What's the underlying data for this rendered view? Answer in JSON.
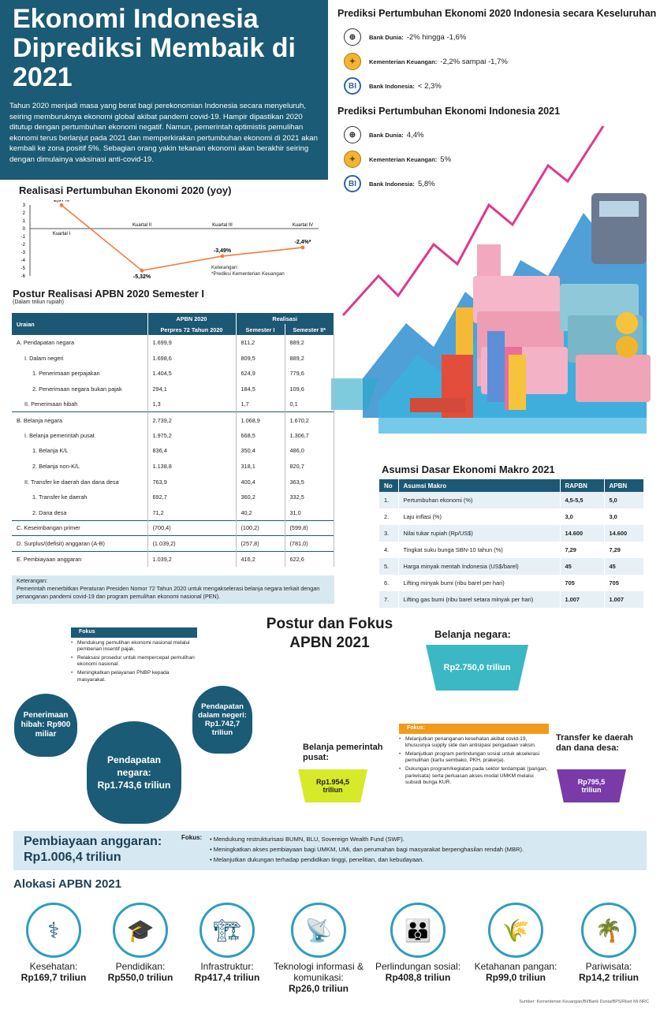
{
  "title": {
    "heading": "Ekonomi Indonesia Diprediksi Membaik di 2021",
    "intro": "Tahun 2020 menjadi masa yang berat bagi perekonomian Indonesia secara menyeluruh, seiring memburuknya ekonomi global akibat pandemi covid-19. Hampir dipastikan 2020 ditutup dengan pertumbuhan ekonomi negatif. Namun, pemerintah optimistis pemulihan ekonomi terus berlanjut pada 2021 dan memperkirakan pertumbuhan ekonomi di 2021 akan kembali ke zona positif 5%. Sebagian orang yakin tekanan ekonomi akan berakhir seiring dengan dimulainya vaksinasi anti-covid-19."
  },
  "pred2020": {
    "heading": "Prediksi Pertumbuhan Ekonomi 2020 Indonesia secara Keseluruhan",
    "rows": [
      {
        "org": "Bank Dunia:",
        "val": "-2% hingga -1,6%"
      },
      {
        "org": "Kementerian Keuangan:",
        "val": "-2,2% sampai -1,7%"
      },
      {
        "org": "Bank Indonesia:",
        "val": "< 2,3%"
      }
    ]
  },
  "pred2021": {
    "heading": "Prediksi Pertumbuhan Ekonomi Indonesia 2021",
    "rows": [
      {
        "org": "Bank Dunia:",
        "val": "4,4%"
      },
      {
        "org": "Kementerian Keuangan:",
        "val": "5%"
      },
      {
        "org": "Bank Indonesia:",
        "val": "5,8%"
      }
    ]
  },
  "growth_chart": {
    "heading": "Realisasi Pertumbuhan Ekonomi 2020 (yoy)",
    "note_title": "Keterangan:",
    "note": "*Prediksi Kementerian Keuangan"
  },
  "chart_data": {
    "type": "line",
    "title": "Realisasi Pertumbuhan Ekonomi 2020 (yoy)",
    "categories": [
      "Kuartal I",
      "Kuartal II",
      "Kuartal III",
      "Kuartal IV"
    ],
    "values": [
      2.97,
      -5.32,
      -3.49,
      -2.4
    ],
    "data_labels": [
      "2,97%",
      "-5,32%",
      "-3,49%",
      "-2,4%*"
    ],
    "yticks": [
      "3",
      "2",
      "1",
      "0",
      "-1",
      "-2",
      "-3",
      "-4",
      "-5",
      "-6"
    ],
    "ylim": [
      -6,
      3
    ],
    "color": "#f47a3c"
  },
  "apbn2020": {
    "heading": "Postur Realisasi APBN 2020 Semester I",
    "subheading": "(Dalam triliun rupiah)",
    "h_uraian": "Uraian",
    "h_apbn": "APBN 2020",
    "h_perpres": "Perpres 72 Tahun 2020",
    "h_realisasi": "Realisasi",
    "h_sem1": "Semester I",
    "h_sem2": "Semester II*",
    "rows": [
      {
        "label": "A. Pendapatan negara",
        "indent": 0,
        "a": "1.699,9",
        "b": "811,2",
        "c": "889,2",
        "sep": false
      },
      {
        "label": "I. Dalam negeri",
        "indent": 1,
        "a": "1.698,6",
        "b": "809,5",
        "c": "889,2",
        "sep": false
      },
      {
        "label": "1. Penerimaan perpajakan",
        "indent": 2,
        "a": "1.404,5",
        "b": "624,9",
        "c": "779,6",
        "sep": false
      },
      {
        "label": "2. Penerimaan negara bukan pajak",
        "indent": 2,
        "a": "294,1",
        "b": "184,5",
        "c": "109,6",
        "sep": false
      },
      {
        "label": "II. Penerimaan hibah",
        "indent": 1,
        "a": "1,3",
        "b": "1,7",
        "c": "0,1",
        "sep": false
      },
      {
        "label": "B. Belanja negara",
        "indent": 0,
        "a": "2.739,2",
        "b": "1.068,9",
        "c": "1.670,2",
        "sep": true
      },
      {
        "label": "I. Belanja pemerintah pusat",
        "indent": 1,
        "a": "1.975,2",
        "b": "668,5",
        "c": "1.306,7",
        "sep": false
      },
      {
        "label": "1. Belanja K/L",
        "indent": 2,
        "a": "836,4",
        "b": "350,4",
        "c": "486,0",
        "sep": false
      },
      {
        "label": "2. Belanja non-K/L",
        "indent": 2,
        "a": "1.138,8",
        "b": "318,1",
        "c": "820,7",
        "sep": false
      },
      {
        "label": "II. Transfer ke daerah dan dana desa",
        "indent": 1,
        "a": "763,9",
        "b": "400,4",
        "c": "363,5",
        "sep": false
      },
      {
        "label": "1. Transfer ke daerah",
        "indent": 2,
        "a": "692,7",
        "b": "360,2",
        "c": "332,5",
        "sep": false
      },
      {
        "label": "2. Dana desa",
        "indent": 2,
        "a": "71,2",
        "b": "40,2",
        "c": "31,0",
        "sep": false
      },
      {
        "label": "C. Keseimbangan primer",
        "indent": 0,
        "a": "(700,4)",
        "b": "(100,2)",
        "c": "(599,8)",
        "sep": true
      },
      {
        "label": "D. Surplus/(defisit) anggaran (A-B)",
        "indent": 0,
        "a": "(1.039,2)",
        "b": "(257,8)",
        "c": "(781,0)",
        "sep": true
      },
      {
        "label": "E. Pembiayaan anggaran",
        "indent": 0,
        "a": "1.039,2",
        "b": "416,2",
        "c": "622,6",
        "sep": true
      }
    ],
    "note_title": "Keterangan:",
    "note": "Pemerintah menerbitkan Peraturan Presiden Nomor 72 Tahun 2020 untuk mengakselerasi belanja negara terkait dengan penanganan pandemi covid-19 dan program pemulihan ekonomi nasional (PEN)."
  },
  "makro": {
    "heading": "Asumsi Dasar Ekonomi Makro 2021",
    "h_no": "No",
    "h_asumsi": "Asumsi Makro",
    "h_rapbn": "RAPBN",
    "h_apbn": "APBN",
    "rows": [
      {
        "no": "1.",
        "label": "Pertumbuhan ekonomi (%)",
        "rapbn": "4,5-5,5",
        "apbn": "5,0"
      },
      {
        "no": "2.",
        "label": "Laju inflasi (%)",
        "rapbn": "3,0",
        "apbn": "3,0"
      },
      {
        "no": "3.",
        "label": "Nilai tukar rupiah (Rp/US$)",
        "rapbn": "14.600",
        "apbn": "14.600"
      },
      {
        "no": "4.",
        "label": "Tingkat suku bunga SBN-10 tahun (%)",
        "rapbn": "7,29",
        "apbn": "7,29"
      },
      {
        "no": "5.",
        "label": "Harga minyak mentah Indonesia (US$/barel)",
        "rapbn": "45",
        "apbn": "45"
      },
      {
        "no": "6.",
        "label": "Lifting minyak bumi (ribu barel per hari)",
        "rapbn": "705",
        "apbn": "705"
      },
      {
        "no": "7.",
        "label": "Lifting gas bumi (ribu barel setara minyak per hari)",
        "rapbn": "1.007",
        "apbn": "1.007"
      }
    ]
  },
  "postur2021": {
    "heading": "Postur dan Fokus APBN 2021",
    "fokus_tag": "Fokus",
    "fokus_items": [
      "Mendukung pemulihan ekonomi nasional melalui pemberian insentif pajak.",
      "Relaksasi prosedur untuk mempercepat pemulihan ekonomi nasional.",
      "Meningkatkan pelayanan PNBP kepada masyarakat."
    ],
    "hibah": "Penerimaan hibah: Rp900 miliar",
    "dalam_negeri": "Pendapatan dalam negeri: Rp1.742,7 triliun",
    "pendapatan": "Pendapatan negara: Rp1.743,6 triliun",
    "belanja_label": "Belanja negara:",
    "belanja_val": "Rp2.750,0 triliun",
    "pusat_label": "Belanja pemerintah pusat:",
    "pusat_val": "Rp1.954,5 triliun",
    "transfer_label": "Transfer ke daerah dan dana desa:",
    "transfer_val": "Rp795,5 triliun",
    "fokus2_tag": "Fokus:",
    "fokus2_items": [
      "Melanjutkan penanganan kesehatan akibat covid-19, khususnya supply side dan antisipasi pengadaan vaksin.",
      "Melanjutkan program perlindungan sosial untuk akselerasi pemulihan (kartu sembako, PKH, prakerja).",
      "Dukungan program/kegiatan pada sektor terdampak (pangan, pariwisata) serta perluasan akses modal UMKM melalui subsidi bunga KUR."
    ]
  },
  "pembiayaan": {
    "label": "Pembiayaan anggaran:",
    "val": "Rp1.006,4 triliun",
    "fokus_tag": "Fokus:",
    "items": [
      "Mendukung restrukturisasi BUMN, BLU, Sovereign Wealth Fund (SWF).",
      "Meningkatkan akses pembiayaan bagi UMKM, UMi, dan perumahan bagi masyarakat berpenghasilan rendah (MBR).",
      "Melanjutkan dukungan terhadap pendidikan tinggi, penelitian, dan kebudayaan."
    ]
  },
  "alokasi": {
    "heading": "Alokasi APBN 2021",
    "items": [
      {
        "label": "Kesehatan:",
        "val": "Rp169,7 triliun",
        "icon": "stethoscope-icon",
        "glyph": "⚕"
      },
      {
        "label": "Pendidikan:",
        "val": "Rp550,0 triliun",
        "icon": "graduation-cap-icon",
        "glyph": "🎓"
      },
      {
        "label": "Infrastruktur:",
        "val": "Rp417,4 triliun",
        "icon": "crane-icon",
        "glyph": "🏗"
      },
      {
        "label": "Teknologi informasi & komunikasi:",
        "val": "Rp26,0 triliun",
        "icon": "antenna-icon",
        "glyph": "📡"
      },
      {
        "label": "Perlindungan sosial:",
        "val": "Rp408,8 triliun",
        "icon": "family-hand-icon",
        "glyph": "👪"
      },
      {
        "label": "Ketahanan pangan:",
        "val": "Rp99,0 triliun",
        "icon": "wheat-icon",
        "glyph": "🌾"
      },
      {
        "label": "Pariwisata:",
        "val": "Rp14,2 triliun",
        "icon": "palm-island-icon",
        "glyph": "🌴"
      }
    ]
  },
  "source": "Sumber: Kementerian Keuangan/BI/Bank Dunia/BPS/Riset MI-NRC"
}
